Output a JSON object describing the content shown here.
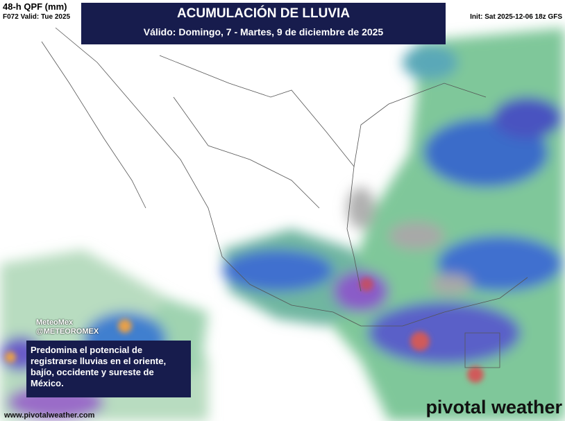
{
  "header": {
    "product": "48-h QPF (mm)",
    "valid": "F072 Valid: Tue 2025",
    "init": "Init: Sat 2025-12-06 18z GFS"
  },
  "title": {
    "main": "ACUMULACIÓN DE LLUVIA",
    "sub": "Válido: Domingo, 7 - Martes, 9 de diciembre de 2025"
  },
  "credit": {
    "name": "MeteoMex",
    "handle": "@METEOROMEX"
  },
  "note": "Predomina el potencial de registrarse lluvias en el oriente, bajío, occidente y sureste de México.",
  "logo": "pivotal weather",
  "url": "www.pivotalweather.com"
}
